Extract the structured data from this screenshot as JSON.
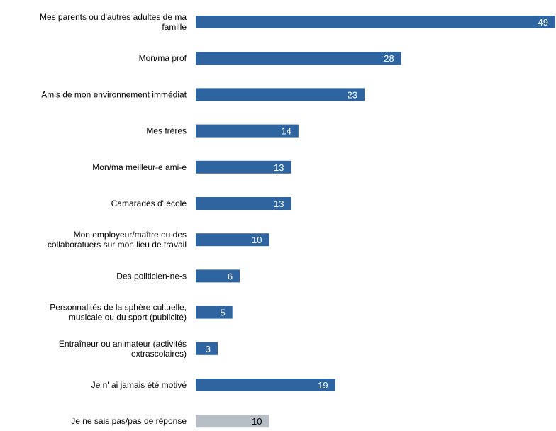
{
  "chart_data": {
    "type": "bar",
    "orientation": "horizontal",
    "categories": [
      "Mes parents ou d'autres adultes de ma famille",
      "Mon/ma prof",
      "Amis de mon environnement immédiat",
      "Mes frères",
      "Mon/ma meilleur-e ami-e",
      "Camarades d' école",
      "Mon employeur/maître ou des collaboratuers sur mon lieu de travail",
      "Des politicien-ne-s",
      "Personnalités de la sphère cultuelle, musicale ou du sport (publicité)",
      "Entraîneur ou animateur (activités extrascolaires)",
      "Je n' ai jamais été motivé",
      "Je ne sais pas/pas de réponse"
    ],
    "category_lines": [
      [
        "Mes parents ou d'autres adultes de ma",
        "famille"
      ],
      [
        "Mon/ma prof"
      ],
      [
        "Amis de mon environnement immédiat"
      ],
      [
        "Mes frères"
      ],
      [
        "Mon/ma meilleur-e ami-e"
      ],
      [
        "Camarades d' école"
      ],
      [
        "Mon employeur/maître ou des",
        "collaboratuers sur mon lieu de travail"
      ],
      [
        "Des politicien-ne-s"
      ],
      [
        "Personnalités de la sphère cultuelle,",
        "musicale ou du sport (publicité)"
      ],
      [
        "Entraîneur ou animateur (activités",
        "extrascolaires)"
      ],
      [
        "Je n' ai jamais été motivé"
      ],
      [
        "Je ne sais pas/pas de réponse"
      ]
    ],
    "values": [
      49,
      28,
      23,
      14,
      13,
      13,
      10,
      6,
      5,
      3,
      19,
      10
    ],
    "xlim": [
      0,
      49
    ],
    "title": "",
    "xlabel": "",
    "ylabel": "",
    "grid": false,
    "legend": "none",
    "colors": {
      "bar": "#2E64A0",
      "bar_no_answer": "#B8BEC6",
      "label_on_bar": "#FFFFFF",
      "label_on_gray": "#000000",
      "category_text": "#000000"
    }
  }
}
